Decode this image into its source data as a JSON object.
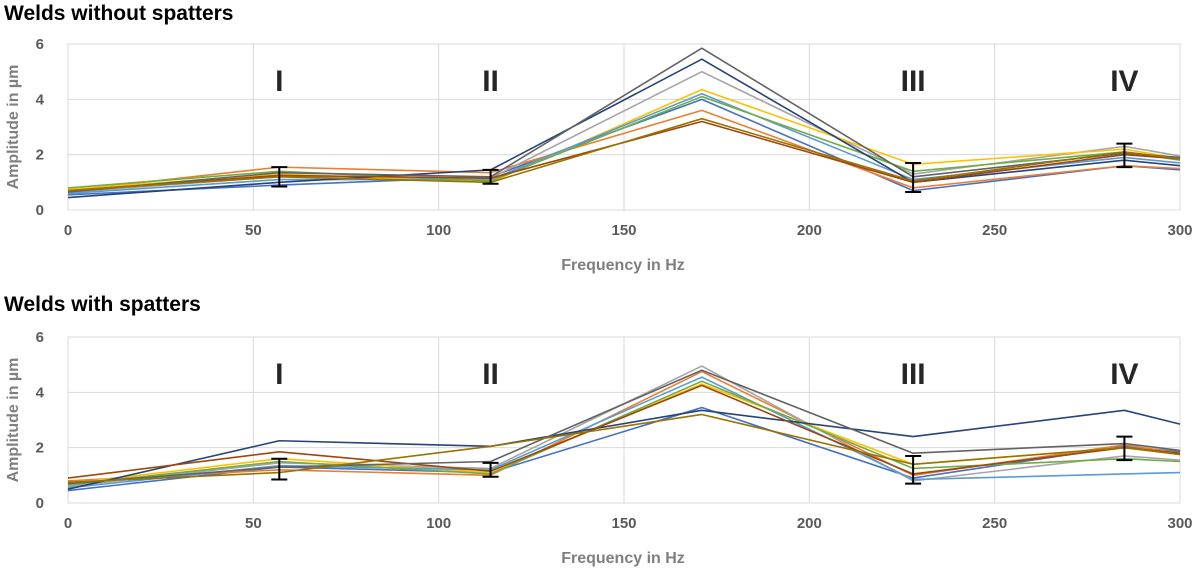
{
  "charts": [
    {
      "title": "Welds without spatters",
      "chart_data": {
        "type": "line",
        "title": "Welds without spatters",
        "xlabel": "Frequency in Hz",
        "ylabel": "Amplitude in µm",
        "xlim": [
          0,
          300
        ],
        "ylim": [
          0,
          6
        ],
        "xticks": [
          "0",
          "50",
          "100",
          "150",
          "200",
          "250",
          "300"
        ],
        "yticks": [
          "0",
          "2",
          "4",
          "6"
        ],
        "grid": true,
        "x": [
          0,
          57,
          114,
          171,
          228,
          285,
          300
        ],
        "region_labels": [
          {
            "text": "I",
            "x": 57
          },
          {
            "text": "II",
            "x": 114
          },
          {
            "text": "III",
            "x": 228
          },
          {
            "text": "IV",
            "x": 285
          }
        ],
        "series": [
          {
            "color": "#4472C4",
            "values": [
              0.55,
              0.9,
              1.2,
              4.0,
              0.7,
              1.6,
              1.45
            ]
          },
          {
            "color": "#ED7D31",
            "values": [
              0.7,
              1.55,
              1.35,
              3.6,
              0.8,
              1.6,
              1.5
            ]
          },
          {
            "color": "#A5A5A5",
            "values": [
              0.65,
              1.2,
              1.15,
              5.0,
              1.3,
              2.3,
              1.95
            ]
          },
          {
            "color": "#FFC000",
            "values": [
              0.75,
              1.3,
              1.0,
              4.35,
              1.65,
              2.2,
              1.85
            ]
          },
          {
            "color": "#5B9BD5",
            "values": [
              0.6,
              1.1,
              1.1,
              4.2,
              1.1,
              1.9,
              1.7
            ]
          },
          {
            "color": "#70AD47",
            "values": [
              0.8,
              1.4,
              1.05,
              4.1,
              1.4,
              2.1,
              1.8
            ]
          },
          {
            "color": "#264478",
            "values": [
              0.45,
              1.0,
              1.45,
              5.45,
              1.0,
              1.8,
              1.6
            ]
          },
          {
            "color": "#9E480E",
            "values": [
              0.7,
              1.25,
              1.15,
              3.2,
              1.0,
              2.0,
              1.85
            ]
          },
          {
            "color": "#636363",
            "values": [
              0.65,
              1.35,
              1.2,
              5.85,
              1.2,
              2.05,
              1.9
            ]
          },
          {
            "color": "#997300",
            "values": [
              0.7,
              1.2,
              1.0,
              3.3,
              1.05,
              2.1,
              1.85
            ]
          }
        ],
        "error_bars": [
          {
            "x": 57,
            "low": 0.85,
            "high": 1.55
          },
          {
            "x": 114,
            "low": 0.95,
            "high": 1.45
          },
          {
            "x": 228,
            "low": 0.65,
            "high": 1.7
          },
          {
            "x": 285,
            "low": 1.55,
            "high": 2.4
          }
        ]
      }
    },
    {
      "title": "Welds with spatters",
      "chart_data": {
        "type": "line",
        "title": "Welds with spatters",
        "xlabel": "Frequency in Hz",
        "ylabel": "Amplitude in µm",
        "xlim": [
          0,
          300
        ],
        "ylim": [
          0,
          6
        ],
        "xticks": [
          "0",
          "50",
          "100",
          "150",
          "200",
          "250",
          "300"
        ],
        "yticks": [
          "0",
          "2",
          "4",
          "6"
        ],
        "grid": true,
        "x": [
          0,
          57,
          114,
          171,
          228,
          285,
          300
        ],
        "region_labels": [
          {
            "text": "I",
            "x": 57
          },
          {
            "text": "II",
            "x": 114
          },
          {
            "text": "III",
            "x": 228
          },
          {
            "text": "IV",
            "x": 285
          }
        ],
        "series": [
          {
            "color": "#4472C4",
            "values": [
              0.45,
              1.3,
              1.1,
              3.45,
              0.9,
              2.05,
              1.85
            ]
          },
          {
            "color": "#ED7D31",
            "values": [
              0.8,
              1.2,
              1.0,
              4.75,
              1.0,
              2.1,
              1.8
            ]
          },
          {
            "color": "#A5A5A5",
            "values": [
              0.6,
              1.45,
              1.25,
              4.95,
              0.8,
              1.7,
              1.55
            ]
          },
          {
            "color": "#FFC000",
            "values": [
              0.7,
              1.6,
              1.1,
              4.3,
              1.4,
              2.0,
              1.8
            ]
          },
          {
            "color": "#5B9BD5",
            "values": [
              0.55,
              1.35,
              1.2,
              4.55,
              0.85,
              1.05,
              1.1
            ]
          },
          {
            "color": "#70AD47",
            "values": [
              0.65,
              1.5,
              1.05,
              4.4,
              1.25,
              1.6,
              1.5
            ]
          },
          {
            "color": "#264478",
            "values": [
              0.5,
              2.25,
              2.05,
              3.35,
              2.4,
              3.35,
              2.85
            ]
          },
          {
            "color": "#9E480E",
            "values": [
              0.9,
              1.85,
              1.15,
              4.25,
              1.05,
              2.0,
              1.8
            ]
          },
          {
            "color": "#636363",
            "values": [
              0.7,
              1.3,
              1.5,
              4.8,
              1.8,
              2.15,
              1.9
            ]
          },
          {
            "color": "#997300",
            "values": [
              0.75,
              1.1,
              2.05,
              3.2,
              1.4,
              2.0,
              1.75
            ]
          }
        ],
        "error_bars": [
          {
            "x": 57,
            "low": 0.85,
            "high": 1.6
          },
          {
            "x": 114,
            "low": 0.95,
            "high": 1.45
          },
          {
            "x": 228,
            "low": 0.7,
            "high": 1.7
          },
          {
            "x": 285,
            "low": 1.55,
            "high": 2.4
          }
        ]
      }
    }
  ]
}
